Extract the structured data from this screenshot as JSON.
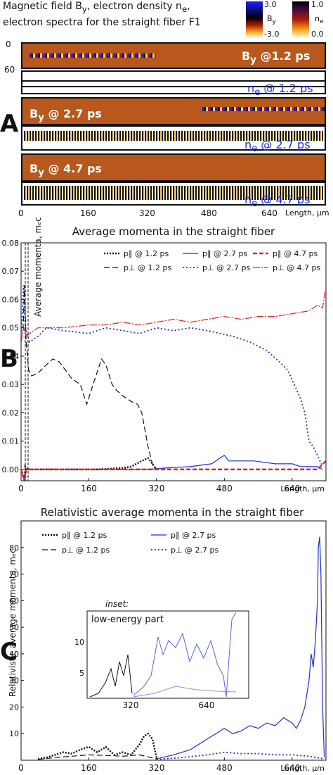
{
  "header": {
    "line1": "Magnetic field B",
    "line1_sub": "y",
    "line1_tail": ", electron density n",
    "line1_sub2": "e",
    "line1_end": ",",
    "line2": "electron spectra for the straight fiber F1"
  },
  "colorbars": {
    "by": {
      "max": "3.0",
      "label": "B",
      "label_sub": "y",
      "min": "-3.0"
    },
    "ne": {
      "max": "1.0",
      "label": "n",
      "label_sub": "e",
      "min": "0.0"
    }
  },
  "panel_a": {
    "letter": "A",
    "y_ticks": [
      "0",
      "60"
    ],
    "strips": [
      {
        "field_label": "B",
        "field_sub": "y",
        "field_time": " @1.2 ps",
        "dens_label": "n",
        "dens_sub": "e",
        "dens_time": " @ 1.2 ps"
      },
      {
        "field_label": "B",
        "field_sub": "y",
        "field_time": " @ 2.7 ps",
        "dens_label": "n",
        "dens_sub": "e",
        "dens_time": " @ 2.7 ps"
      },
      {
        "field_label": "B",
        "field_sub": "y",
        "field_time": " @ 4.7 ps",
        "dens_label": "n",
        "dens_sub": "e",
        "dens_time": " @ 4.7 ps"
      }
    ],
    "x_ticks": [
      "0",
      "160",
      "320",
      "480",
      "640"
    ],
    "x_label": "Length, μm"
  },
  "chart_data": [
    {
      "type": "line",
      "panel": "B",
      "title": "Average momenta in the straight fiber",
      "ylabel": "Average momenta, mₑc",
      "xlabel": "Length, μm",
      "xlim": [
        0,
        720
      ],
      "ylim": [
        -0.004,
        0.08
      ],
      "x_ticks": [
        0,
        160,
        320,
        480,
        640
      ],
      "y_ticks": [
        0.0,
        0.01,
        0.02,
        0.03,
        0.04,
        0.05,
        0.06,
        0.07,
        0.08
      ],
      "legend": "top",
      "series": [
        {
          "name": "p∥ @ 1.2 ps",
          "color": "#111111",
          "dash": "2,2",
          "width": 2.5,
          "x": [
            0,
            8,
            10,
            15,
            40,
            100,
            180,
            240,
            260,
            285,
            300,
            310,
            320
          ],
          "y": [
            0,
            -0.004,
            0.001,
            0,
            0,
            0,
            0,
            0.0005,
            0.001,
            0.003,
            0.004,
            0.002,
            0
          ]
        },
        {
          "name": "p⊥ @ 1.2 ps",
          "color": "#111111",
          "dash": "8,4",
          "width": 1.2,
          "x": [
            0,
            5,
            8,
            12,
            18,
            25,
            40,
            60,
            75,
            90,
            100,
            120,
            140,
            155,
            170,
            190,
            200,
            215,
            225,
            240,
            260,
            275,
            285,
            300,
            310,
            320
          ],
          "y": [
            0.05,
            0.05,
            0.065,
            0.045,
            0.035,
            0.033,
            0.034,
            0.037,
            0.039,
            0.038,
            0.036,
            0.032,
            0.03,
            0.023,
            0.03,
            0.039,
            0.037,
            0.03,
            0.028,
            0.026,
            0.024,
            0.023,
            0.02,
            0.008,
            0.002,
            0
          ]
        },
        {
          "name": "p∥ @ 2.7 ps",
          "color": "#1f2fd6",
          "dash": "",
          "width": 1.2,
          "x": [
            0,
            8,
            12,
            40,
            100,
            200,
            300,
            340,
            400,
            450,
            470,
            480,
            490,
            510,
            550,
            600,
            640,
            660,
            680,
            700,
            712
          ],
          "y": [
            0,
            -0.004,
            0,
            0,
            0,
            0,
            0,
            0.0005,
            0.001,
            0.002,
            0.004,
            0.005,
            0.003,
            0.003,
            0.003,
            0.002,
            0.002,
            0.001,
            0.001,
            0.001,
            0
          ]
        },
        {
          "name": "p⊥ @ 2.7 ps",
          "color": "#1f2fd6",
          "dash": "2,3",
          "width": 1.8,
          "x": [
            0,
            6,
            10,
            20,
            40,
            60,
            100,
            160,
            200,
            240,
            280,
            320,
            360,
            400,
            440,
            470,
            500,
            540,
            580,
            610,
            630,
            645,
            660,
            670,
            680,
            690,
            700,
            712
          ],
          "y": [
            0.045,
            0.065,
            0.05,
            0.045,
            0.047,
            0.05,
            0.049,
            0.048,
            0.05,
            0.049,
            0.048,
            0.05,
            0.049,
            0.05,
            0.049,
            0.048,
            0.047,
            0.045,
            0.042,
            0.038,
            0.035,
            0.03,
            0.025,
            0.02,
            0.01,
            0.008,
            0.005,
            0.001
          ]
        },
        {
          "name": "p∥ @ 4.7 ps",
          "color": "#e0241c",
          "dash": "6,3",
          "width": 2.5,
          "x": [
            0,
            8,
            12,
            100,
            200,
            300,
            400,
            500,
            600,
            700,
            720
          ],
          "y": [
            0,
            -0.004,
            0,
            0,
            0,
            0,
            0,
            0,
            0,
            0,
            0.003
          ]
        },
        {
          "name": "p⊥ @ 4.7 ps",
          "color": "#e0241c",
          "dash": "10,2,2,2",
          "width": 1.2,
          "x": [
            0,
            6,
            12,
            20,
            40,
            60,
            100,
            160,
            200,
            240,
            280,
            320,
            360,
            400,
            440,
            480,
            520,
            560,
            600,
            640,
            680,
            700,
            712,
            718
          ],
          "y": [
            0.045,
            0.05,
            0.047,
            0.048,
            0.05,
            0.05,
            0.05,
            0.051,
            0.051,
            0.052,
            0.051,
            0.052,
            0.053,
            0.052,
            0.053,
            0.054,
            0.053,
            0.054,
            0.054,
            0.055,
            0.056,
            0.058,
            0.057,
            0.063
          ]
        }
      ]
    },
    {
      "type": "line",
      "panel": "C",
      "title": "Relativistic average momenta in the straight fiber",
      "ylabel": "Relativistic average momenta, mₑc",
      "xlabel": "Length, μm",
      "xlim": [
        0,
        720
      ],
      "ylim": [
        0,
        90
      ],
      "x_ticks": [
        0,
        160,
        320,
        480,
        640
      ],
      "y_ticks": [
        10,
        20,
        30,
        40,
        50,
        60,
        70,
        80
      ],
      "legend": "top",
      "inset": {
        "caption": "inset:",
        "title": "low-energy part",
        "x_ticks": [
          "320",
          "640"
        ],
        "y_ticks": [
          "5",
          "10"
        ]
      },
      "series": [
        {
          "name": "p∥ @ 1.2 ps",
          "color": "#111111",
          "dash": "2,2",
          "width": 2.5,
          "x": [
            40,
            60,
            80,
            100,
            120,
            140,
            160,
            180,
            200,
            220,
            240,
            260,
            280,
            290,
            300,
            310,
            320
          ],
          "y": [
            0.5,
            1,
            2,
            3,
            2.5,
            4,
            5,
            3,
            5,
            2,
            3,
            2,
            6,
            9,
            10,
            8,
            1
          ]
        },
        {
          "name": "p⊥ @ 1.2 ps",
          "color": "#111111",
          "dash": "8,4",
          "width": 1.2,
          "x": [
            40,
            80,
            120,
            160,
            200,
            240,
            280,
            320
          ],
          "y": [
            0.3,
            1,
            1.5,
            2,
            1.8,
            1.5,
            2,
            0.5
          ]
        },
        {
          "name": "p∥ @ 2.7 ps",
          "color": "#1f2fd6",
          "dash": "",
          "width": 1.2,
          "x": [
            320,
            360,
            400,
            440,
            460,
            480,
            500,
            520,
            540,
            560,
            580,
            600,
            620,
            640,
            650,
            660,
            670,
            680,
            685,
            690,
            695,
            700,
            702,
            705,
            708,
            712,
            716
          ],
          "y": [
            0.5,
            2,
            4,
            8,
            10,
            12,
            10,
            11,
            13,
            12,
            14,
            13,
            16,
            14,
            12,
            15,
            20,
            30,
            40,
            35,
            45,
            60,
            80,
            84,
            70,
            20,
            1
          ]
        },
        {
          "name": "p⊥ @ 2.7 ps",
          "color": "#1f2fd6",
          "dash": "2,3",
          "width": 1.8,
          "x": [
            320,
            380,
            440,
            480,
            520,
            560,
            600,
            640,
            680,
            716
          ],
          "y": [
            0.3,
            1,
            2,
            3,
            2.5,
            2.5,
            2,
            2,
            1.5,
            0.5
          ]
        }
      ]
    }
  ]
}
